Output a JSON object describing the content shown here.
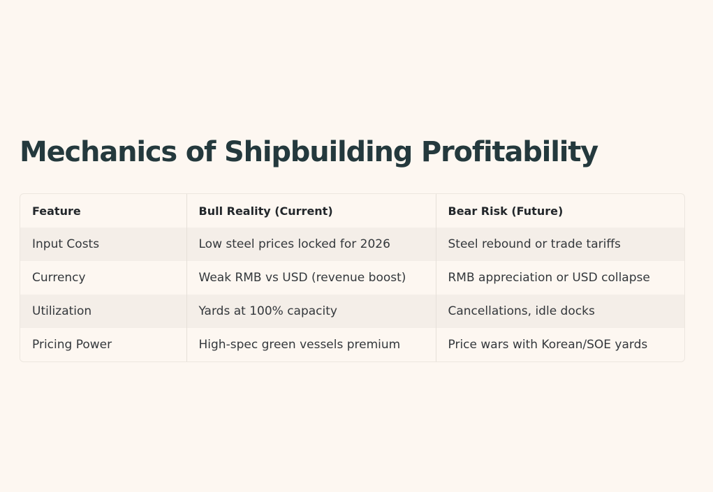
{
  "title": "Mechanics of Shipbuilding Profitability",
  "table": {
    "headers": [
      "Feature",
      "Bull Reality (Current)",
      "Bear Risk (Future)"
    ],
    "rows": [
      [
        "Input Costs",
        "Low steel prices locked for 2026",
        "Steel rebound or trade tariffs"
      ],
      [
        "Currency",
        "Weak RMB vs USD (revenue boost)",
        "RMB appreciation or USD collapse"
      ],
      [
        "Utilization",
        "Yards at 100% capacity",
        "Cancellations, idle docks"
      ],
      [
        "Pricing Power",
        "High-spec green vessels premium",
        "Price wars with Korean/SOE yards"
      ]
    ]
  }
}
